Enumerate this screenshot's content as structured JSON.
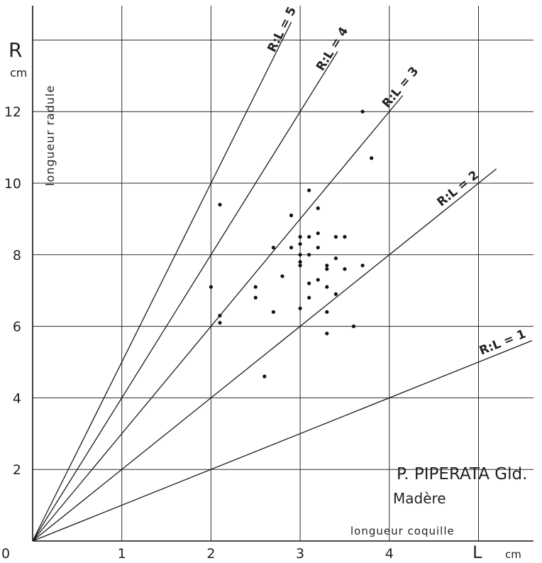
{
  "chart_data": {
    "type": "scatter",
    "title": "P. PIPERATA Gld.",
    "subtitle": "Madère",
    "x_axis": {
      "symbol": "L",
      "unit": "cm",
      "label": "longueur coquille",
      "ticks": [
        {
          "value": 0,
          "label": "0"
        },
        {
          "value": 1,
          "label": "1"
        },
        {
          "value": 2,
          "label": "2"
        },
        {
          "value": 3,
          "label": "3"
        },
        {
          "value": 4,
          "label": "4"
        }
      ],
      "range": [
        0,
        4.8
      ],
      "grid": [
        1,
        2,
        3,
        4,
        5
      ]
    },
    "y_axis": {
      "symbol": "R",
      "unit": "cm",
      "label": "longueur radule",
      "ticks": [
        {
          "value": 2,
          "label": "2"
        },
        {
          "value": 4,
          "label": "4"
        },
        {
          "value": 6,
          "label": "6"
        },
        {
          "value": 8,
          "label": "8"
        },
        {
          "value": 10,
          "label": "10"
        },
        {
          "value": 12,
          "label": "12"
        }
      ],
      "range": [
        0,
        15
      ],
      "grid": [
        2,
        4,
        6,
        8,
        10,
        12,
        14
      ]
    },
    "grid": true,
    "ratio_lines": [
      {
        "label": "R:L = 1",
        "slope": 1,
        "x_end": 5.6
      },
      {
        "label": "R:L = 2",
        "slope": 2,
        "x_end": 5.2
      },
      {
        "label": "R:L = 3",
        "slope": 3,
        "x_end": 4.15
      },
      {
        "label": "R:L = 4",
        "slope": 4,
        "x_end": 3.42
      },
      {
        "label": "R:L = 5",
        "slope": 5,
        "x_end": 2.9
      }
    ],
    "points": [
      {
        "x": 3.7,
        "y": 12.0
      },
      {
        "x": 3.8,
        "y": 10.7
      },
      {
        "x": 3.1,
        "y": 9.8
      },
      {
        "x": 2.1,
        "y": 9.4
      },
      {
        "x": 3.2,
        "y": 9.3
      },
      {
        "x": 2.9,
        "y": 9.1
      },
      {
        "x": 3.0,
        "y": 8.5
      },
      {
        "x": 3.1,
        "y": 8.5
      },
      {
        "x": 3.2,
        "y": 8.6
      },
      {
        "x": 3.4,
        "y": 8.5
      },
      {
        "x": 3.5,
        "y": 8.5
      },
      {
        "x": 2.7,
        "y": 8.2
      },
      {
        "x": 2.9,
        "y": 8.2
      },
      {
        "x": 3.0,
        "y": 8.3
      },
      {
        "x": 3.2,
        "y": 8.2
      },
      {
        "x": 3.0,
        "y": 8.0
      },
      {
        "x": 3.1,
        "y": 8.0
      },
      {
        "x": 3.4,
        "y": 7.9
      },
      {
        "x": 3.0,
        "y": 7.8
      },
      {
        "x": 3.0,
        "y": 7.7
      },
      {
        "x": 3.3,
        "y": 7.6
      },
      {
        "x": 3.3,
        "y": 7.7
      },
      {
        "x": 3.5,
        "y": 7.6
      },
      {
        "x": 3.7,
        "y": 7.7
      },
      {
        "x": 2.8,
        "y": 7.4
      },
      {
        "x": 3.2,
        "y": 7.3
      },
      {
        "x": 3.1,
        "y": 7.2
      },
      {
        "x": 2.5,
        "y": 7.1
      },
      {
        "x": 3.3,
        "y": 7.1
      },
      {
        "x": 2.0,
        "y": 7.1
      },
      {
        "x": 3.4,
        "y": 6.9
      },
      {
        "x": 2.5,
        "y": 6.8
      },
      {
        "x": 3.1,
        "y": 6.8
      },
      {
        "x": 3.0,
        "y": 6.5
      },
      {
        "x": 2.7,
        "y": 6.4
      },
      {
        "x": 3.3,
        "y": 6.4
      },
      {
        "x": 2.1,
        "y": 6.3
      },
      {
        "x": 2.1,
        "y": 6.1
      },
      {
        "x": 3.6,
        "y": 6.0
      },
      {
        "x": 3.3,
        "y": 5.8
      },
      {
        "x": 2.6,
        "y": 4.6
      }
    ]
  }
}
